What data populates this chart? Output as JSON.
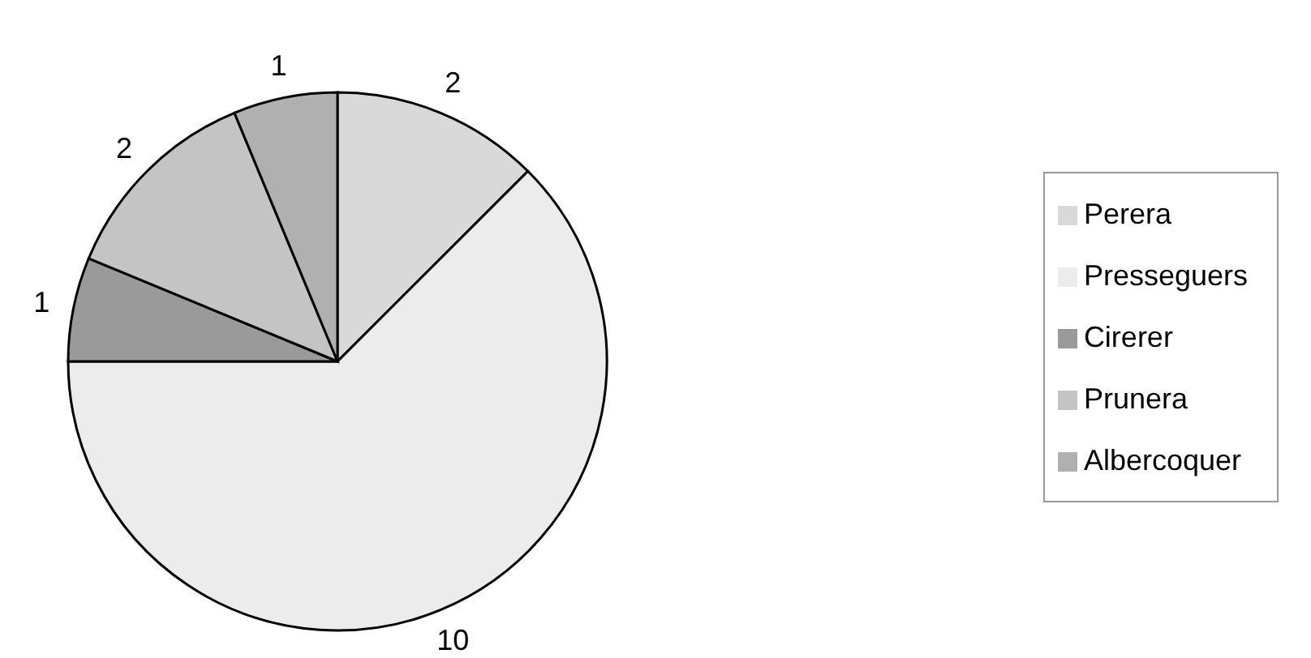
{
  "chart_data": {
    "type": "pie",
    "categories": [
      "Perera",
      "Presseguers",
      "Cirerer",
      "Prunera",
      "Albercoquer"
    ],
    "values": [
      2,
      10,
      1,
      2,
      1
    ],
    "colors": [
      "#d9d9d9",
      "#ececec",
      "#9a9a9a",
      "#c4c4c4",
      "#b0b0b0"
    ],
    "data_labels": true,
    "legend": "right"
  }
}
